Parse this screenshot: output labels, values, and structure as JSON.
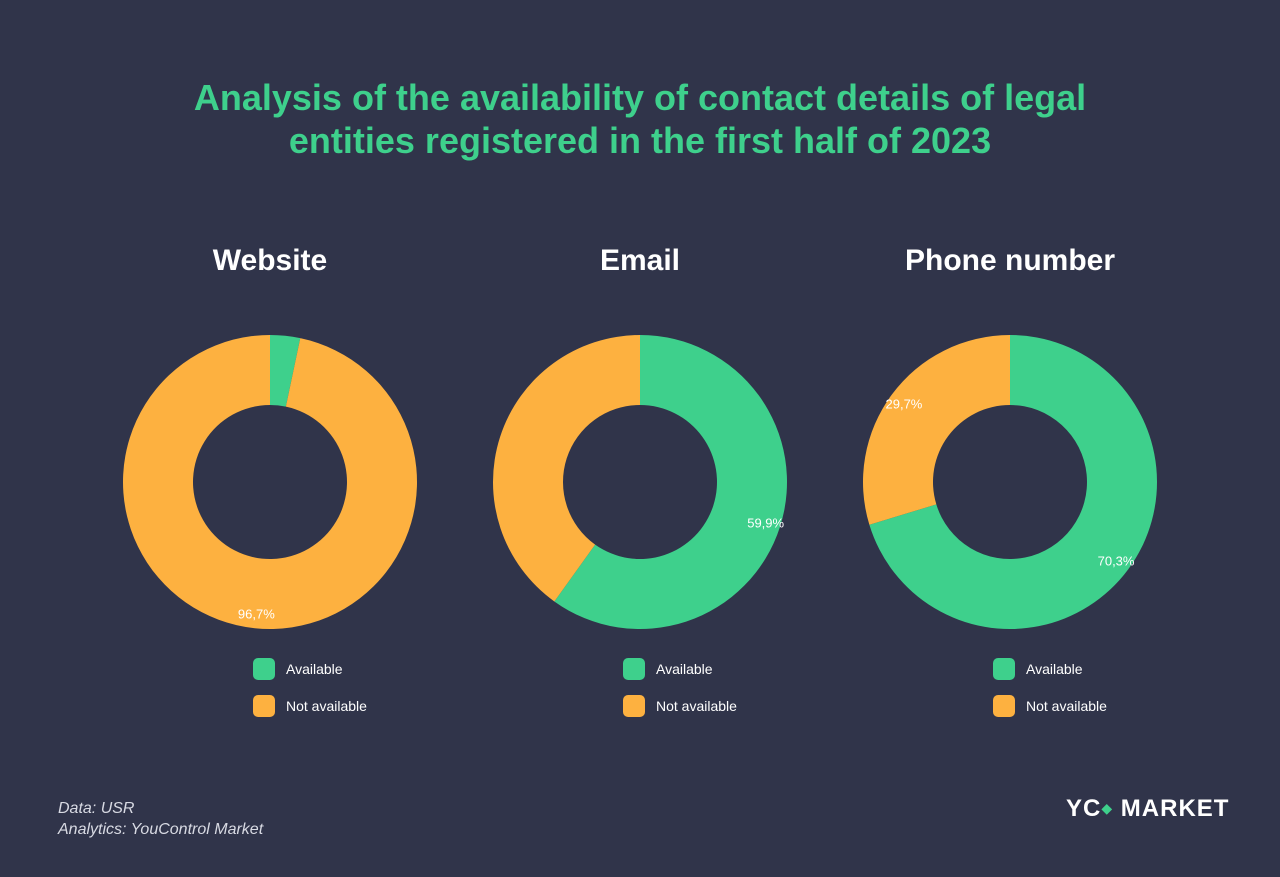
{
  "header": {
    "title_line1": "Analysis of the availability of contact details of legal",
    "title_line2": "entities registered in the first half of 2023"
  },
  "colors": {
    "background": "#30344a",
    "available": "#3ed08c",
    "not_available": "#fdb140",
    "title": "#3ed08c"
  },
  "chart_data": [
    {
      "type": "pie",
      "title": "Website",
      "categories": [
        "Available",
        "Not available"
      ],
      "values": [
        3.3,
        96.7
      ],
      "labels": [
        "",
        "96,7%"
      ],
      "legend_placement": "bottom"
    },
    {
      "type": "pie",
      "title": "Email",
      "categories": [
        "Available",
        "Not available"
      ],
      "values": [
        59.9,
        40.1
      ],
      "labels": [
        "59,9%",
        ""
      ],
      "legend_placement": "bottom"
    },
    {
      "type": "pie",
      "title": "Phone number",
      "categories": [
        "Available",
        "Not available"
      ],
      "values": [
        70.3,
        29.7
      ],
      "labels": [
        "70,3%",
        "29,7%"
      ],
      "legend_placement": "bottom"
    }
  ],
  "footer": {
    "source": "Data: USR",
    "analytics": "Analytics: YouControl Market"
  },
  "logo": {
    "left": "YC",
    "mark": "◆",
    "right": "MARKET"
  }
}
